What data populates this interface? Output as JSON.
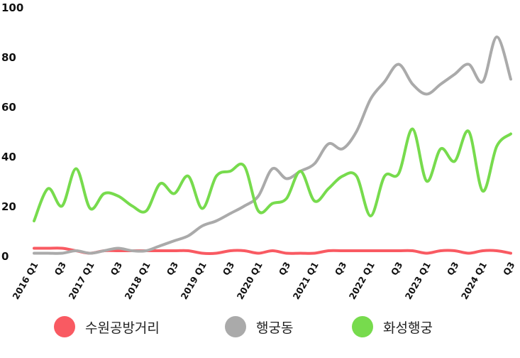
{
  "chart_data": {
    "type": "line",
    "title": "",
    "xlabel": "",
    "ylabel": "",
    "ylim": [
      0,
      100
    ],
    "yticks": [
      "0",
      "20",
      "40",
      "60",
      "80",
      "100"
    ],
    "grid": false,
    "legend_position": "bottom",
    "x_tick_labels": [
      "2016 Q1",
      "Q3",
      "2017 Q1",
      "Q3",
      "2018 Q1",
      "Q3",
      "2019 Q1",
      "Q3",
      "2020 Q1",
      "Q3",
      "2021 Q1",
      "Q3",
      "2022 Q1",
      "Q3",
      "2023 Q1",
      "Q3",
      "2024 Q1",
      "Q3"
    ],
    "x": [
      "2016 Q1",
      "2016 Q2",
      "2016 Q3",
      "2016 Q4",
      "2017 Q1",
      "2017 Q2",
      "2017 Q3",
      "2017 Q4",
      "2018 Q1",
      "2018 Q2",
      "2018 Q3",
      "2018 Q4",
      "2019 Q1",
      "2019 Q2",
      "2019 Q3",
      "2019 Q4",
      "2020 Q1",
      "2020 Q2",
      "2020 Q3",
      "2020 Q4",
      "2021 Q1",
      "2021 Q2",
      "2021 Q3",
      "2021 Q4",
      "2022 Q1",
      "2022 Q2",
      "2022 Q3",
      "2022 Q4",
      "2023 Q1",
      "2023 Q2",
      "2023 Q3",
      "2023 Q4",
      "2024 Q1",
      "2024 Q2",
      "2024 Q3"
    ],
    "series": [
      {
        "name": "수원공방거리",
        "color": "#f95a62",
        "values": [
          3,
          3,
          3,
          2,
          1,
          2,
          2,
          2,
          2,
          2,
          2,
          2,
          1,
          1,
          2,
          2,
          1,
          2,
          1,
          1,
          1,
          2,
          2,
          2,
          2,
          2,
          2,
          2,
          1,
          2,
          2,
          1,
          2,
          2,
          1
        ]
      },
      {
        "name": "행궁동",
        "color": "#aaaaaa",
        "values": [
          1,
          1,
          1,
          2,
          1,
          2,
          3,
          2,
          2,
          4,
          6,
          8,
          12,
          14,
          17,
          20,
          24,
          35,
          31,
          34,
          37,
          45,
          43,
          50,
          63,
          70,
          77,
          69,
          65,
          69,
          73,
          77,
          70,
          88,
          71
        ]
      },
      {
        "name": "화성행궁",
        "color": "#77db4d",
        "values": [
          14,
          27,
          20,
          35,
          19,
          25,
          24,
          20,
          18,
          29,
          25,
          32,
          19,
          32,
          34,
          36,
          18,
          21,
          23,
          34,
          22,
          27,
          32,
          32,
          16,
          32,
          33,
          51,
          30,
          43,
          38,
          50,
          26,
          44,
          49
        ]
      }
    ]
  }
}
